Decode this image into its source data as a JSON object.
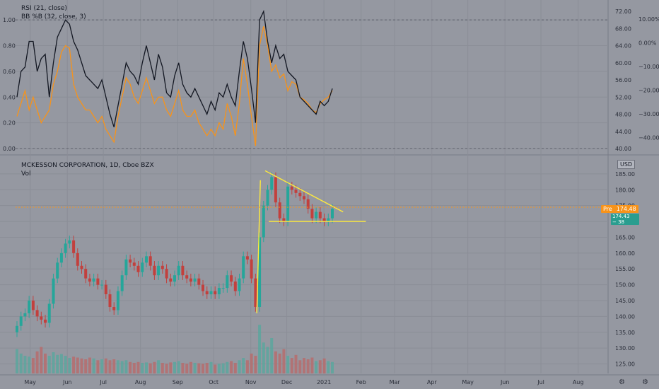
{
  "colors": {
    "background": "#9598a1",
    "grid": "#8b8e97",
    "rsi_line": "#131722",
    "bb_line": "#f7931a",
    "candle_up": "#26a69a",
    "candle_down": "#c2403d",
    "volume_up": "#57a89e",
    "volume_down": "#b86a6a",
    "drawing": "#ffeb3b",
    "pre_badge": "#f7931a",
    "last_badge": "#2a9d8f"
  },
  "indicator_pane": {
    "legend_rsi": "RSI (21, close)",
    "legend_bb": "BB %B (32, close, 3)",
    "left_axis_labels": [
      "1.00",
      "0.80",
      "0.60",
      "0.40",
      "0.20",
      "0.00"
    ],
    "right_axis_labels": [
      "72.00",
      "68.00",
      "64.00",
      "60.00",
      "56.00",
      "52.00",
      "48.00",
      "44.00",
      "40.00"
    ],
    "far_right_labels": [
      "10.00%",
      "0.00%",
      "−10.00%",
      "−20.00%",
      "−30.00%",
      "−40.00%"
    ]
  },
  "price_pane": {
    "title": "MCKESSON CORPORATION, 1D, Cboe BZX",
    "volume_label": "Vol",
    "currency": "USD",
    "price_axis_labels": [
      "185.00",
      "180.00",
      "175.00",
      "170.00",
      "165.00",
      "160.00",
      "155.00",
      "150.00",
      "145.00",
      "140.00",
      "135.00",
      "130.00",
      "125.00"
    ],
    "pre_label": "Pre",
    "pre_price": "174.48",
    "last_price": "174.43",
    "last_delta": "− 38"
  },
  "time_axis": [
    "May",
    "Jun",
    "Jul",
    "Aug",
    "Sep",
    "Oct",
    "Nov",
    "Dec",
    "2021",
    "Feb",
    "Mar",
    "Apr",
    "May",
    "Jun",
    "Jul",
    "Aug"
  ],
  "chart_data": [
    {
      "type": "line",
      "title": "RSI (21, close) / BB %B (32, close, 3)",
      "x_range": [
        "2020-04-20",
        "2021-01-08"
      ],
      "series": [
        {
          "name": "RSI (21, close)",
          "axis": "right",
          "ylim": [
            40,
            73
          ],
          "values": [
            52,
            58,
            59,
            65,
            65,
            58,
            61,
            62,
            52,
            60,
            66,
            68,
            70,
            69,
            65,
            63,
            60,
            57,
            56,
            55,
            54,
            56,
            52,
            48,
            45,
            50,
            55,
            60,
            58,
            57,
            55,
            60,
            64,
            60,
            56,
            62,
            59,
            53,
            52,
            57,
            60,
            55,
            53,
            52,
            54,
            52,
            50,
            48,
            51,
            49,
            53,
            52,
            55,
            52,
            50,
            58,
            65,
            61,
            54,
            46,
            70,
            72,
            65,
            60,
            64,
            61,
            62,
            58,
            57,
            56,
            52,
            51,
            50,
            49,
            48,
            51,
            50,
            51,
            54
          ]
        },
        {
          "name": "BB %B (32, close, 3)",
          "axis": "left",
          "ylim": [
            0,
            1.1
          ],
          "values": [
            0.25,
            0.35,
            0.45,
            0.3,
            0.4,
            0.3,
            0.2,
            0.25,
            0.3,
            0.5,
            0.6,
            0.75,
            0.8,
            0.78,
            0.5,
            0.4,
            0.35,
            0.3,
            0.3,
            0.25,
            0.2,
            0.25,
            0.15,
            0.1,
            0.05,
            0.25,
            0.4,
            0.55,
            0.5,
            0.4,
            0.35,
            0.45,
            0.55,
            0.45,
            0.35,
            0.4,
            0.4,
            0.3,
            0.25,
            0.35,
            0.45,
            0.3,
            0.25,
            0.25,
            0.3,
            0.2,
            0.15,
            0.1,
            0.15,
            0.1,
            0.2,
            0.15,
            0.35,
            0.25,
            0.1,
            0.35,
            0.7,
            0.5,
            0.25,
            0.02,
            0.8,
            0.95,
            0.8,
            0.6,
            0.65,
            0.55,
            0.58,
            0.45,
            0.52,
            0.5,
            0.4,
            0.38,
            0.35,
            0.3,
            0.28,
            0.35,
            0.38,
            0.4,
            0.45
          ]
        }
      ],
      "left_ylim": [
        0,
        1.1
      ],
      "right_ylim": [
        40,
        73
      ],
      "grid": true
    },
    {
      "type": "candlestick",
      "title": "MCKESSON CORPORATION, 1D, Cboe BZX",
      "x_range": [
        "2020-04-20",
        "2021-01-08"
      ],
      "ylim": [
        122,
        189
      ],
      "close_values": [
        137,
        140,
        141,
        145,
        142,
        140,
        139,
        138,
        144,
        152,
        157,
        160,
        163,
        164,
        160,
        156,
        155,
        152,
        151,
        152,
        150,
        150,
        147,
        143,
        142,
        148,
        153,
        158,
        157,
        156,
        154,
        157,
        159,
        156,
        153,
        156,
        155,
        152,
        151,
        153,
        156,
        153,
        152,
        151,
        152,
        150,
        148,
        147,
        148,
        147,
        149,
        149,
        153,
        151,
        148,
        152,
        159,
        158,
        152,
        143,
        165,
        175,
        180,
        184,
        176,
        171,
        170,
        181,
        180,
        179,
        178,
        177,
        174,
        171,
        173,
        171,
        170,
        171,
        174
      ],
      "volume_values": [
        55,
        45,
        40,
        38,
        35,
        50,
        60,
        45,
        40,
        48,
        42,
        44,
        40,
        35,
        38,
        36,
        34,
        32,
        36,
        34,
        30,
        32,
        34,
        30,
        32,
        30,
        28,
        30,
        26,
        24,
        26,
        24,
        25,
        23,
        26,
        30,
        24,
        22,
        25,
        26,
        28,
        24,
        22,
        26,
        24,
        23,
        22,
        24,
        26,
        20,
        22,
        23,
        26,
        28,
        24,
        30,
        35,
        30,
        45,
        40,
        110,
        70,
        60,
        80,
        50,
        45,
        55,
        40,
        35,
        42,
        30,
        35,
        32,
        36,
        28,
        30,
        34,
        28,
        26
      ],
      "volume_ylim": [
        0,
        120
      ],
      "trendlines": [
        {
          "from": [
            "2020-11-13",
            186
          ],
          "to": [
            "2021-01-17",
            173
          ]
        },
        {
          "from": [
            "2020-11-16",
            170
          ],
          "to": [
            "2021-02-05",
            170
          ]
        },
        {
          "from": [
            "2020-11-06",
            141
          ],
          "to": [
            "2020-11-09",
            183
          ]
        }
      ],
      "grid": true
    }
  ]
}
